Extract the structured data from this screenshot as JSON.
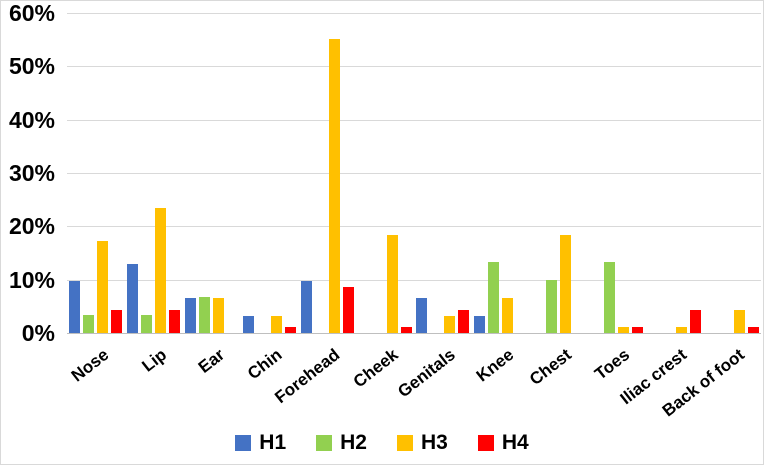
{
  "figure": {
    "background": "#FFFFFF",
    "border_color": "#D9D9D9"
  },
  "chart_data": {
    "type": "bar",
    "title": "",
    "xlabel": "",
    "ylabel": "",
    "categories": [
      "Nose",
      "Lip",
      "Ear",
      "Chin",
      "Forehead",
      "Cheek",
      "Genitals",
      "Knee",
      "Chest",
      "Toes",
      "Iliac crest",
      "Back of foot"
    ],
    "series": [
      {
        "name": "H1",
        "color": "#4472C4",
        "values": [
          9.7,
          12.9,
          6.5,
          3.2,
          9.7,
          0,
          6.5,
          3.2,
          0,
          0,
          0,
          0
        ]
      },
      {
        "name": "H2",
        "color": "#92D050",
        "values": [
          3.3,
          3.3,
          6.7,
          0,
          0,
          0,
          0,
          13.3,
          10.0,
          13.3,
          0,
          0
        ]
      },
      {
        "name": "H3",
        "color": "#FFC000",
        "values": [
          17.2,
          23.5,
          6.5,
          3.2,
          55.2,
          18.3,
          3.2,
          6.5,
          18.3,
          1.1,
          1.1,
          4.3
        ]
      },
      {
        "name": "H4",
        "color": "#FF0000",
        "values": [
          4.3,
          4.3,
          0,
          1.1,
          8.7,
          1.1,
          4.3,
          0,
          0,
          1.1,
          4.3,
          1.1
        ]
      }
    ],
    "ylim": [
      0,
      60
    ],
    "ytick_step": 10,
    "ytick_labels": [
      "0%",
      "10%",
      "20%",
      "30%",
      "40%",
      "50%",
      "60%"
    ],
    "grid": true,
    "gridline_color": "#D9D9D9",
    "axis_line_color": "#BFBFBF",
    "legend_position": "bottom",
    "text_color": "#000000"
  }
}
